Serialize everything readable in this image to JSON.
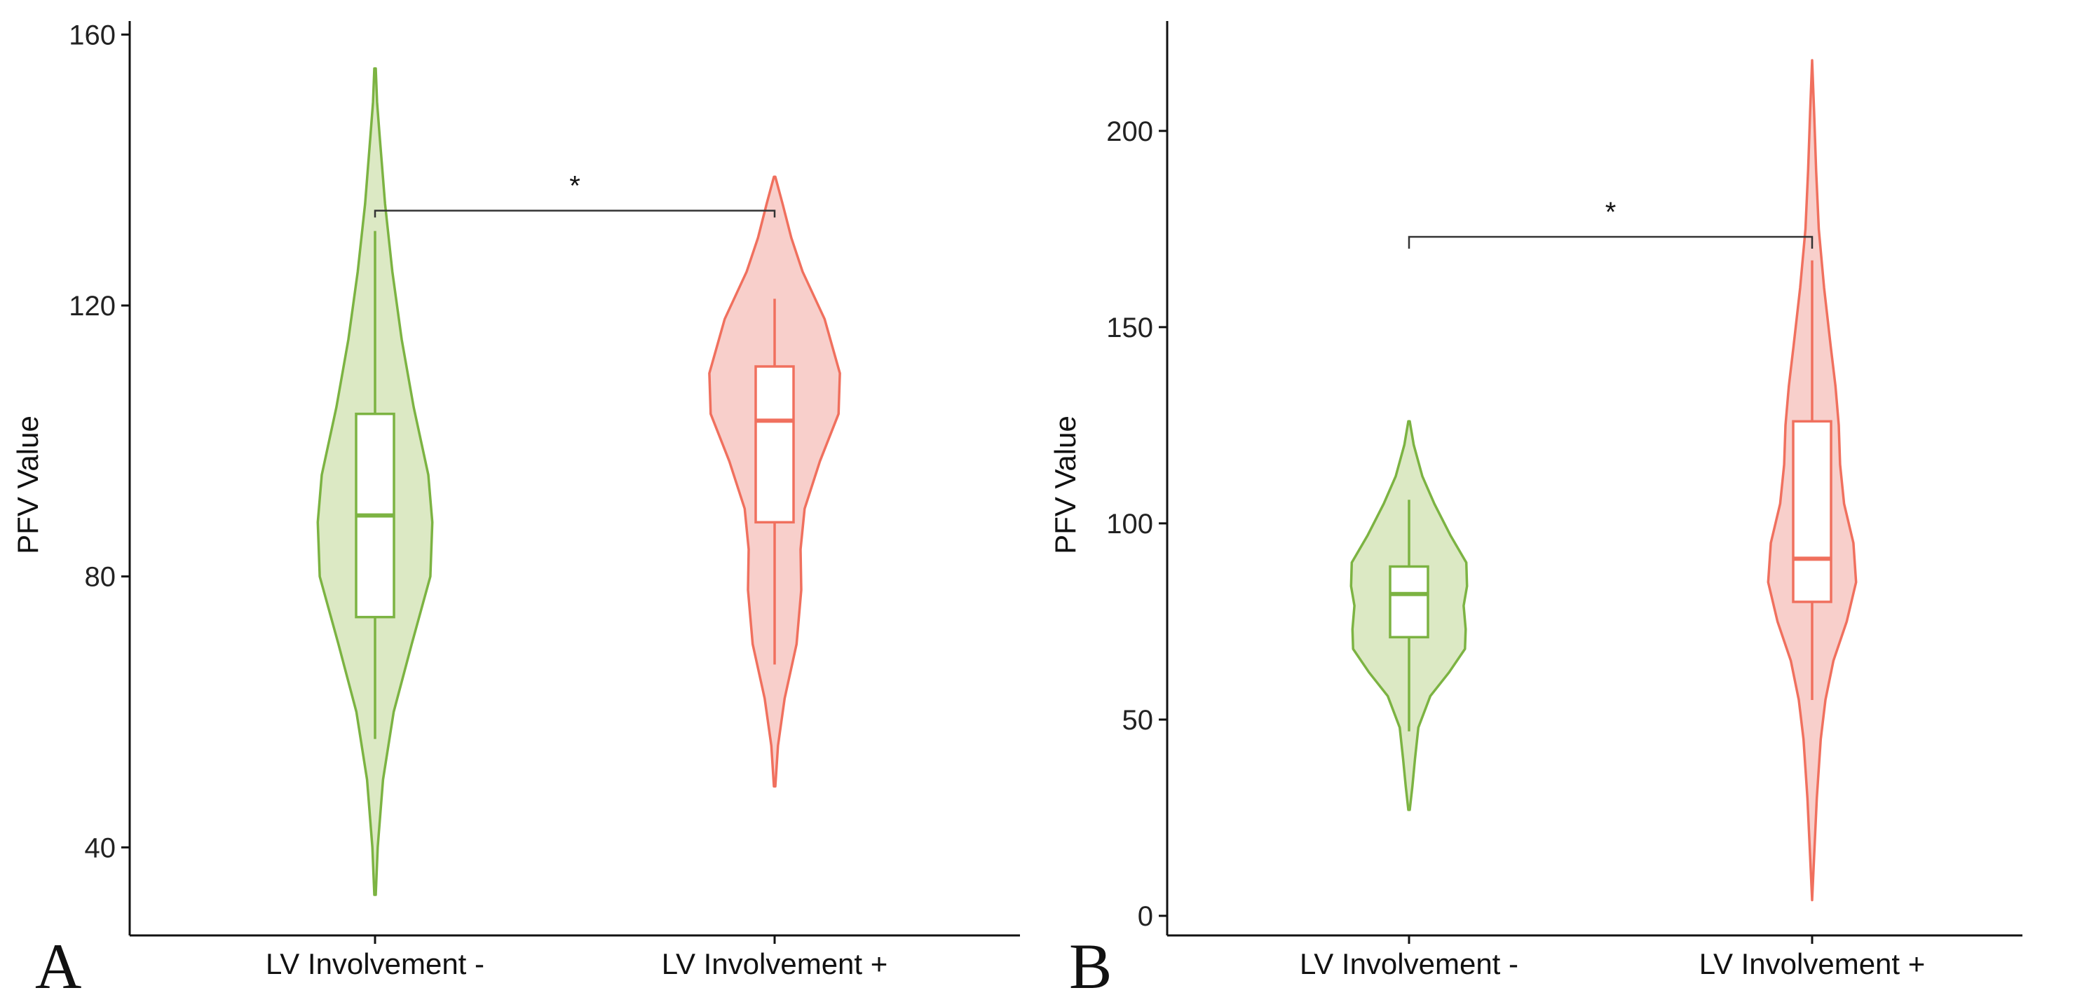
{
  "chart_data": [
    {
      "type": "violin",
      "panel_label": "A",
      "ylabel": "PFV Value",
      "xlabel": "",
      "ylim": [
        27,
        162
      ],
      "yticks": [
        40,
        80,
        120,
        160
      ],
      "categories": [
        "LV Involvement -",
        "LV Involvement +"
      ],
      "series": [
        {
          "name": "LV Involvement -",
          "color": "#7cb342",
          "fill": "#dce9c4",
          "box": {
            "min": 56,
            "q1": 74,
            "median": 89,
            "q3": 104,
            "max": 131
          },
          "violin": {
            "y": [
              33,
              40,
              50,
              60,
              70,
              80,
              88,
              95,
              105,
              115,
              125,
              135,
              145,
              150,
              155
            ],
            "density": [
              0.01,
              0.04,
              0.12,
              0.28,
              0.55,
              0.83,
              0.86,
              0.8,
              0.58,
              0.4,
              0.26,
              0.15,
              0.07,
              0.03,
              0.01
            ]
          }
        },
        {
          "name": "LV Involvement +",
          "color": "#f0705e",
          "fill": "#f8cfcb",
          "box": {
            "min": 67,
            "q1": 88,
            "median": 103,
            "q3": 111,
            "max": 121
          },
          "violin": {
            "y": [
              49,
              55,
              62,
              70,
              78,
              84,
              90,
              97,
              104,
              110,
              118,
              125,
              130,
              135,
              139
            ],
            "density": [
              0.01,
              0.05,
              0.15,
              0.33,
              0.4,
              0.39,
              0.45,
              0.68,
              0.96,
              0.98,
              0.75,
              0.42,
              0.25,
              0.12,
              0.01
            ]
          }
        }
      ],
      "significance": {
        "label": "*",
        "y": 134,
        "tick_low": 133
      }
    },
    {
      "type": "violin",
      "panel_label": "B",
      "ylabel": "PFV Value",
      "xlabel": "",
      "ylim": [
        -5,
        228
      ],
      "yticks": [
        0,
        50,
        100,
        150,
        200
      ],
      "categories": [
        "LV Involvement -",
        "LV Involvement +"
      ],
      "series": [
        {
          "name": "LV Involvement -",
          "color": "#7cb342",
          "fill": "#dce9c4",
          "box": {
            "min": 47,
            "q1": 71,
            "median": 82,
            "q3": 89,
            "max": 106
          },
          "violin": {
            "y": [
              27,
              33,
              40,
              48,
              56,
              62,
              68,
              73,
              79,
              84,
              90,
              97,
              105,
              112,
              120,
              126
            ],
            "density": [
              0.01,
              0.05,
              0.09,
              0.14,
              0.32,
              0.6,
              0.84,
              0.85,
              0.82,
              0.87,
              0.86,
              0.62,
              0.38,
              0.2,
              0.07,
              0.01
            ]
          }
        },
        {
          "name": "LV Involvement +",
          "color": "#f0705e",
          "fill": "#f8cfcb",
          "box": {
            "min": 55,
            "q1": 80,
            "median": 91,
            "q3": 126,
            "max": 167
          },
          "violin": {
            "y": [
              4,
              15,
              30,
              45,
              55,
              65,
              75,
              85,
              95,
              105,
              115,
              125,
              135,
              145,
              160,
              175,
              190,
              205,
              218
            ],
            "density": [
              0.0,
              0.03,
              0.07,
              0.13,
              0.2,
              0.32,
              0.52,
              0.66,
              0.62,
              0.48,
              0.42,
              0.4,
              0.35,
              0.28,
              0.18,
              0.1,
              0.06,
              0.03,
              0.0
            ]
          }
        }
      ],
      "significance": {
        "label": "*",
        "y": 173,
        "tick_low": 170
      }
    }
  ]
}
